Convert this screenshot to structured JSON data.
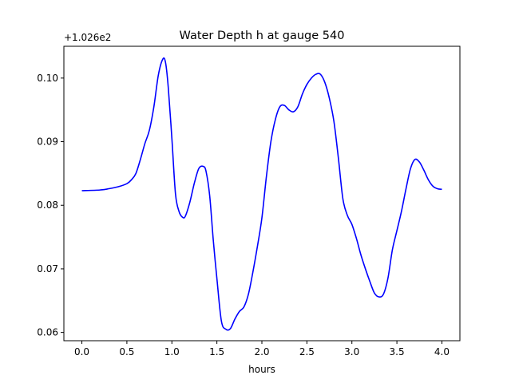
{
  "chart_data": {
    "type": "line",
    "title": "Water Depth h at gauge 540",
    "xlabel": "hours",
    "ylabel": "",
    "offset_label": "+1.026e2",
    "xlim": [
      -0.2,
      4.2
    ],
    "ylim": [
      0.0587,
      0.105
    ],
    "xticks": [
      0.0,
      0.5,
      1.0,
      1.5,
      2.0,
      2.5,
      3.0,
      3.5,
      4.0
    ],
    "xtick_labels": [
      "0.0",
      "0.5",
      "1.0",
      "1.5",
      "2.0",
      "2.5",
      "3.0",
      "3.5",
      "4.0"
    ],
    "yticks": [
      0.06,
      0.07,
      0.08,
      0.09,
      0.1
    ],
    "ytick_labels": [
      "0.06",
      "0.07",
      "0.08",
      "0.09",
      "0.10"
    ],
    "grid": false,
    "series": [
      {
        "name": "",
        "color": "#0000ff",
        "x": [
          0.0,
          0.2,
          0.3,
          0.4,
          0.5,
          0.55,
          0.6,
          0.65,
          0.7,
          0.75,
          0.8,
          0.85,
          0.9,
          0.93,
          0.96,
          1.0,
          1.04,
          1.08,
          1.12,
          1.15,
          1.2,
          1.25,
          1.3,
          1.35,
          1.38,
          1.42,
          1.46,
          1.5,
          1.55,
          1.6,
          1.65,
          1.7,
          1.75,
          1.8,
          1.85,
          1.9,
          1.95,
          2.0,
          2.05,
          2.1,
          2.15,
          2.2,
          2.25,
          2.3,
          2.35,
          2.4,
          2.45,
          2.5,
          2.55,
          2.6,
          2.65,
          2.7,
          2.75,
          2.8,
          2.85,
          2.9,
          2.95,
          3.0,
          3.05,
          3.1,
          3.15,
          3.2,
          3.25,
          3.3,
          3.35,
          3.4,
          3.45,
          3.5,
          3.55,
          3.6,
          3.65,
          3.7,
          3.75,
          3.8,
          3.85,
          3.9,
          3.95,
          4.0
        ],
        "values": [
          0.0823,
          0.0824,
          0.0826,
          0.0829,
          0.0834,
          0.084,
          0.085,
          0.0872,
          0.0897,
          0.0918,
          0.0955,
          0.1005,
          0.103,
          0.1024,
          0.0985,
          0.0905,
          0.0818,
          0.079,
          0.0781,
          0.0783,
          0.0805,
          0.0835,
          0.0858,
          0.0861,
          0.0853,
          0.0815,
          0.0745,
          0.0685,
          0.0618,
          0.0605,
          0.0606,
          0.0621,
          0.0633,
          0.064,
          0.066,
          0.0695,
          0.0735,
          0.078,
          0.0845,
          0.09,
          0.0935,
          0.0955,
          0.0957,
          0.095,
          0.0947,
          0.0955,
          0.0975,
          0.099,
          0.1,
          0.1006,
          0.1006,
          0.0993,
          0.0968,
          0.0932,
          0.0874,
          0.081,
          0.0784,
          0.077,
          0.0748,
          0.0722,
          0.07,
          0.068,
          0.0662,
          0.0656,
          0.066,
          0.0685,
          0.073,
          0.076,
          0.079,
          0.0825,
          0.0857,
          0.0872,
          0.0868,
          0.0855,
          0.084,
          0.083,
          0.0826,
          0.0825
        ]
      }
    ]
  }
}
